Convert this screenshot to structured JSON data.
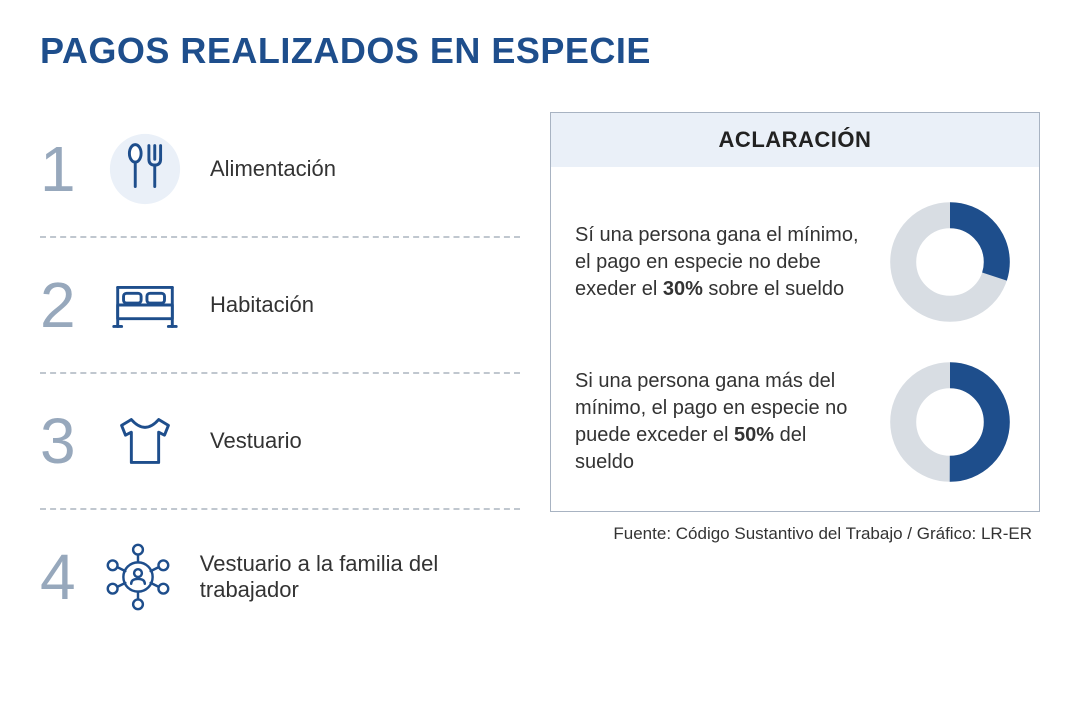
{
  "title": "PAGOS REALIZADOS EN ESPECIE",
  "items": [
    {
      "num": "1",
      "label": "Alimentación"
    },
    {
      "num": "2",
      "label": "Habitación"
    },
    {
      "num": "3",
      "label": "Vestuario"
    },
    {
      "num": "4",
      "label": "Vestuario a la familia del trabajador"
    }
  ],
  "panel": {
    "header": "ACLARACIÓN",
    "rules": [
      {
        "text_pre": "Sí una persona gana el mínimo, el pago en especie no debe exeder el ",
        "bold": "30%",
        "text_post": " sobre el sueldo",
        "percent": 30
      },
      {
        "text_pre": "Si una persona gana más del mínimo, el pago en especie no puede exceder el ",
        "bold": "50%",
        "text_post": " del sueldo",
        "percent": 50
      }
    ]
  },
  "colors": {
    "accent": "#1e4e8c",
    "donut_fill": "#1e4e8c",
    "donut_track": "#d8dde3",
    "num_gray": "#97a8bc",
    "dash": "#c0c7cf",
    "panel_header_bg": "#eaf0f8",
    "panel_border": "#a8b3c2",
    "icon_stroke": "#1e4e8c"
  },
  "source": "Fuente: Código Sustantivo del Trabajo / Gráfico: LR-ER"
}
